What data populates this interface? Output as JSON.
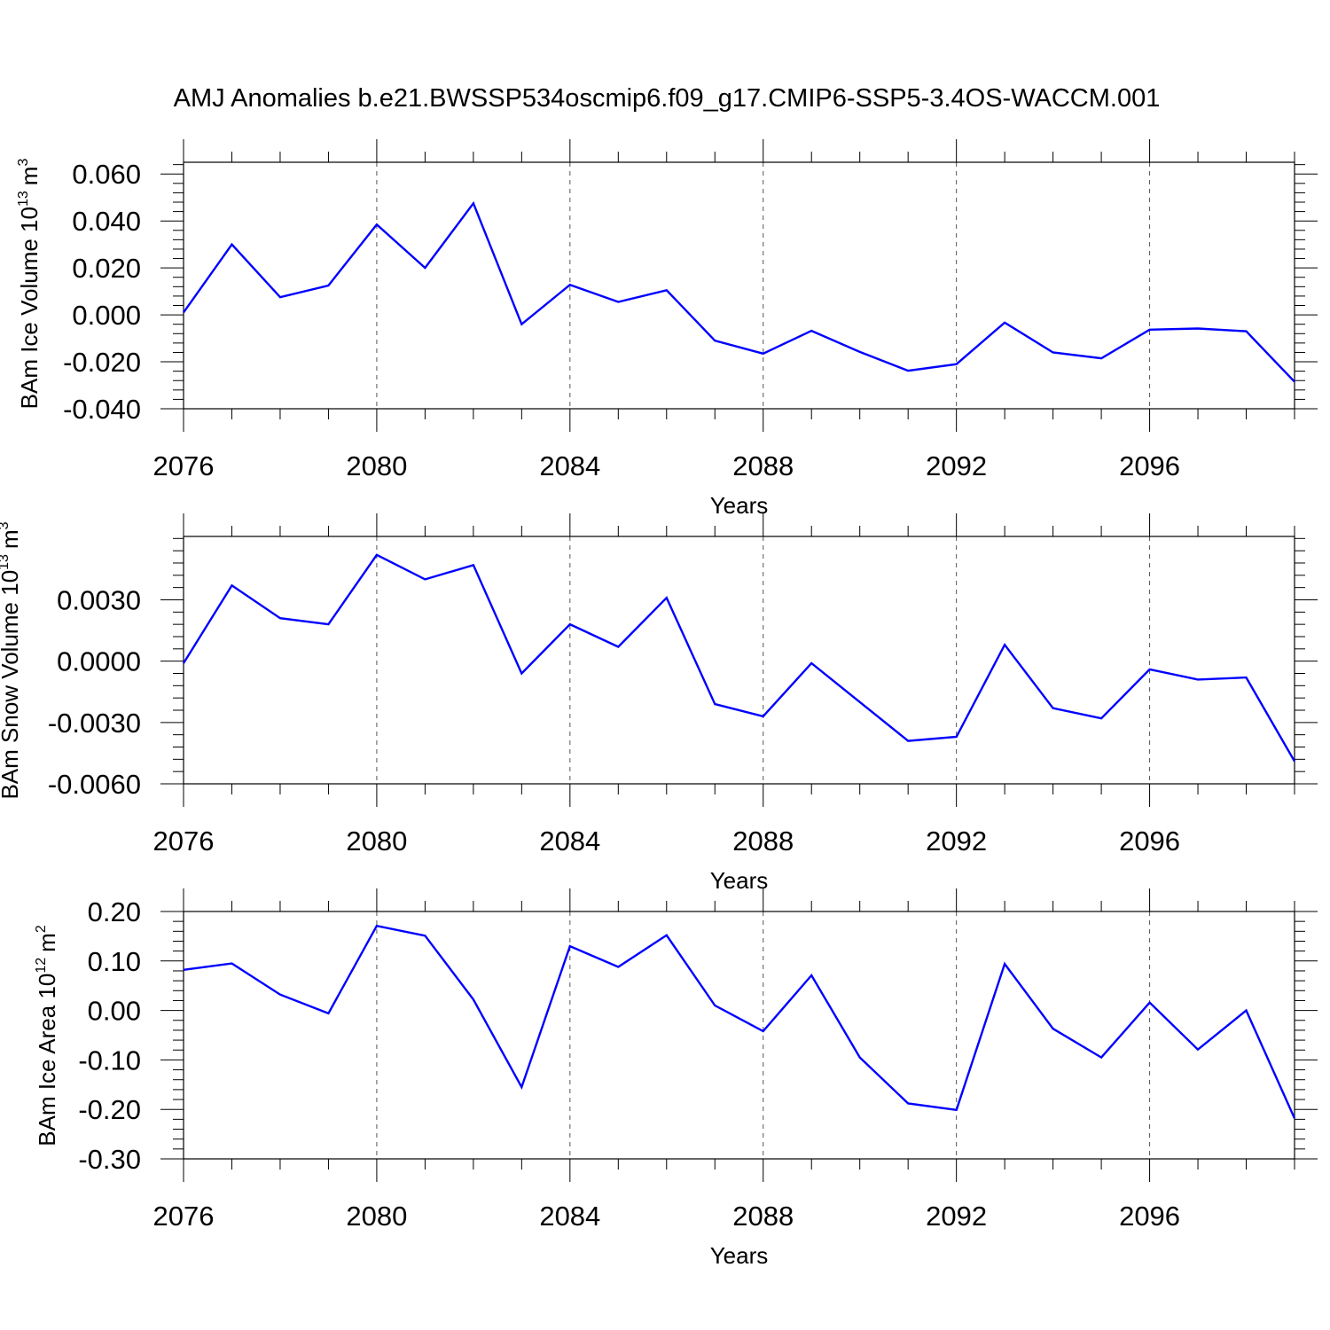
{
  "title": "AMJ Anomalies b.e21.BWSSP534oscmip6.f09_g17.CMIP6-SSP5-3.4OS-WACCM.001",
  "colors": {
    "series": "#0000ff",
    "axis": "#000000",
    "grid": "#555555"
  },
  "chart_data": [
    {
      "type": "line",
      "name": "ice-volume",
      "ylabel": "BAm Ice Volume 10",
      "ylabel_exponent": "13",
      "ylabel_unit": "m",
      "ylabel_unit_exponent": "3",
      "xlabel": "Years",
      "xlim": [
        2076,
        2099
      ],
      "ylim": [
        -0.04,
        0.065
      ],
      "grid": "vertical dashed at major x ticks",
      "x_ticks": [
        2076,
        2080,
        2084,
        2088,
        2092,
        2096
      ],
      "x_tick_labels": [
        "2076",
        "2080",
        "2084",
        "2088",
        "2092",
        "2096"
      ],
      "y_ticks": [
        -0.04,
        -0.02,
        0.0,
        0.02,
        0.04,
        0.06
      ],
      "y_tick_labels": [
        "-0.040",
        "-0.020",
        "0.000",
        "0.020",
        "0.040",
        "0.060"
      ],
      "x": [
        2076,
        2077,
        2078,
        2079,
        2080,
        2081,
        2082,
        2083,
        2084,
        2085,
        2086,
        2087,
        2088,
        2089,
        2090,
        2091,
        2092,
        2093,
        2094,
        2095,
        2096,
        2097,
        2098,
        2099
      ],
      "values": [
        0.001,
        0.03,
        0.0075,
        0.0125,
        0.0385,
        0.02,
        0.0475,
        -0.004,
        0.0128,
        0.0055,
        0.0105,
        -0.011,
        -0.0165,
        -0.0068,
        -0.0158,
        -0.0238,
        -0.021,
        -0.0033,
        -0.016,
        -0.0185,
        -0.0063,
        -0.0058,
        -0.007,
        -0.0285
      ]
    },
    {
      "type": "line",
      "name": "snow-volume",
      "ylabel": "BAm Snow Volume 10",
      "ylabel_exponent": "13",
      "ylabel_unit": "m",
      "ylabel_unit_exponent": "3",
      "xlabel": "Years",
      "xlim": [
        2076,
        2099
      ],
      "ylim": [
        -0.006,
        0.0061
      ],
      "grid": "vertical dashed at major x ticks",
      "x_ticks": [
        2076,
        2080,
        2084,
        2088,
        2092,
        2096
      ],
      "x_tick_labels": [
        "2076",
        "2080",
        "2084",
        "2088",
        "2092",
        "2096"
      ],
      "y_ticks": [
        -0.006,
        -0.003,
        0.0,
        0.003
      ],
      "y_tick_labels": [
        "-0.0060",
        "-0.0030",
        "0.0000",
        "0.0030"
      ],
      "x": [
        2076,
        2077,
        2078,
        2079,
        2080,
        2081,
        2082,
        2083,
        2084,
        2085,
        2086,
        2087,
        2088,
        2089,
        2090,
        2091,
        2092,
        2093,
        2094,
        2095,
        2096,
        2097,
        2098,
        2099
      ],
      "values": [
        -0.0001,
        0.0037,
        0.0021,
        0.0018,
        0.0052,
        0.004,
        0.0047,
        -0.0006,
        0.0018,
        0.0007,
        0.0031,
        -0.0021,
        -0.0027,
        -0.0001,
        -0.002,
        -0.0039,
        -0.0037,
        0.0008,
        -0.0023,
        -0.0028,
        -0.0004,
        -0.0009,
        -0.0008,
        -0.0049
      ]
    },
    {
      "type": "line",
      "name": "ice-area",
      "ylabel": "BAm Ice Area 10",
      "ylabel_exponent": "12",
      "ylabel_unit": "m",
      "ylabel_unit_exponent": "2",
      "xlabel": "Years",
      "xlim": [
        2076,
        2099
      ],
      "ylim": [
        -0.3,
        0.2
      ],
      "grid": "vertical dashed at major x ticks",
      "x_ticks": [
        2076,
        2080,
        2084,
        2088,
        2092,
        2096
      ],
      "x_tick_labels": [
        "2076",
        "2080",
        "2084",
        "2088",
        "2092",
        "2096"
      ],
      "y_ticks": [
        -0.3,
        -0.2,
        -0.1,
        0.0,
        0.1,
        0.2
      ],
      "y_tick_labels": [
        "-0.30",
        "-0.20",
        "-0.10",
        "0.00",
        "0.10",
        "0.20"
      ],
      "x": [
        2076,
        2077,
        2078,
        2079,
        2080,
        2081,
        2082,
        2083,
        2084,
        2085,
        2086,
        2087,
        2088,
        2089,
        2090,
        2091,
        2092,
        2093,
        2094,
        2095,
        2096,
        2097,
        2098,
        2099
      ],
      "values": [
        0.082,
        0.095,
        0.032,
        -0.006,
        0.171,
        0.151,
        0.022,
        -0.155,
        0.13,
        0.088,
        0.152,
        0.01,
        -0.042,
        0.071,
        -0.095,
        -0.188,
        -0.201,
        0.094,
        -0.037,
        -0.095,
        0.016,
        -0.079,
        0.0,
        -0.218
      ]
    }
  ]
}
